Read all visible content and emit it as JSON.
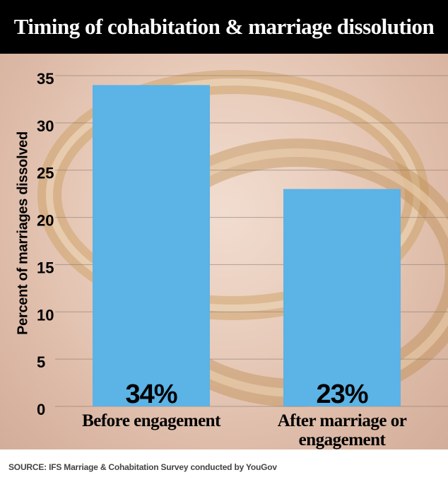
{
  "chart_data": {
    "type": "bar",
    "title": "Timing of cohabitation & marriage dissolution",
    "ylabel": "Percent of marriages dissolved",
    "xlabel": "",
    "categories": [
      "Before engagement",
      "After marriage or engagement"
    ],
    "values": [
      34,
      23
    ],
    "data_labels": [
      "34%",
      "23%"
    ],
    "ylim": [
      0,
      35
    ],
    "yticks": [
      0,
      5,
      10,
      15,
      20,
      25,
      30,
      35
    ],
    "grid": true,
    "legend": "none",
    "bar_color": "#5bb3e6",
    "source": "SOURCE:  IFS Marriage & Cohabitation Survey conducted by YouGov"
  }
}
